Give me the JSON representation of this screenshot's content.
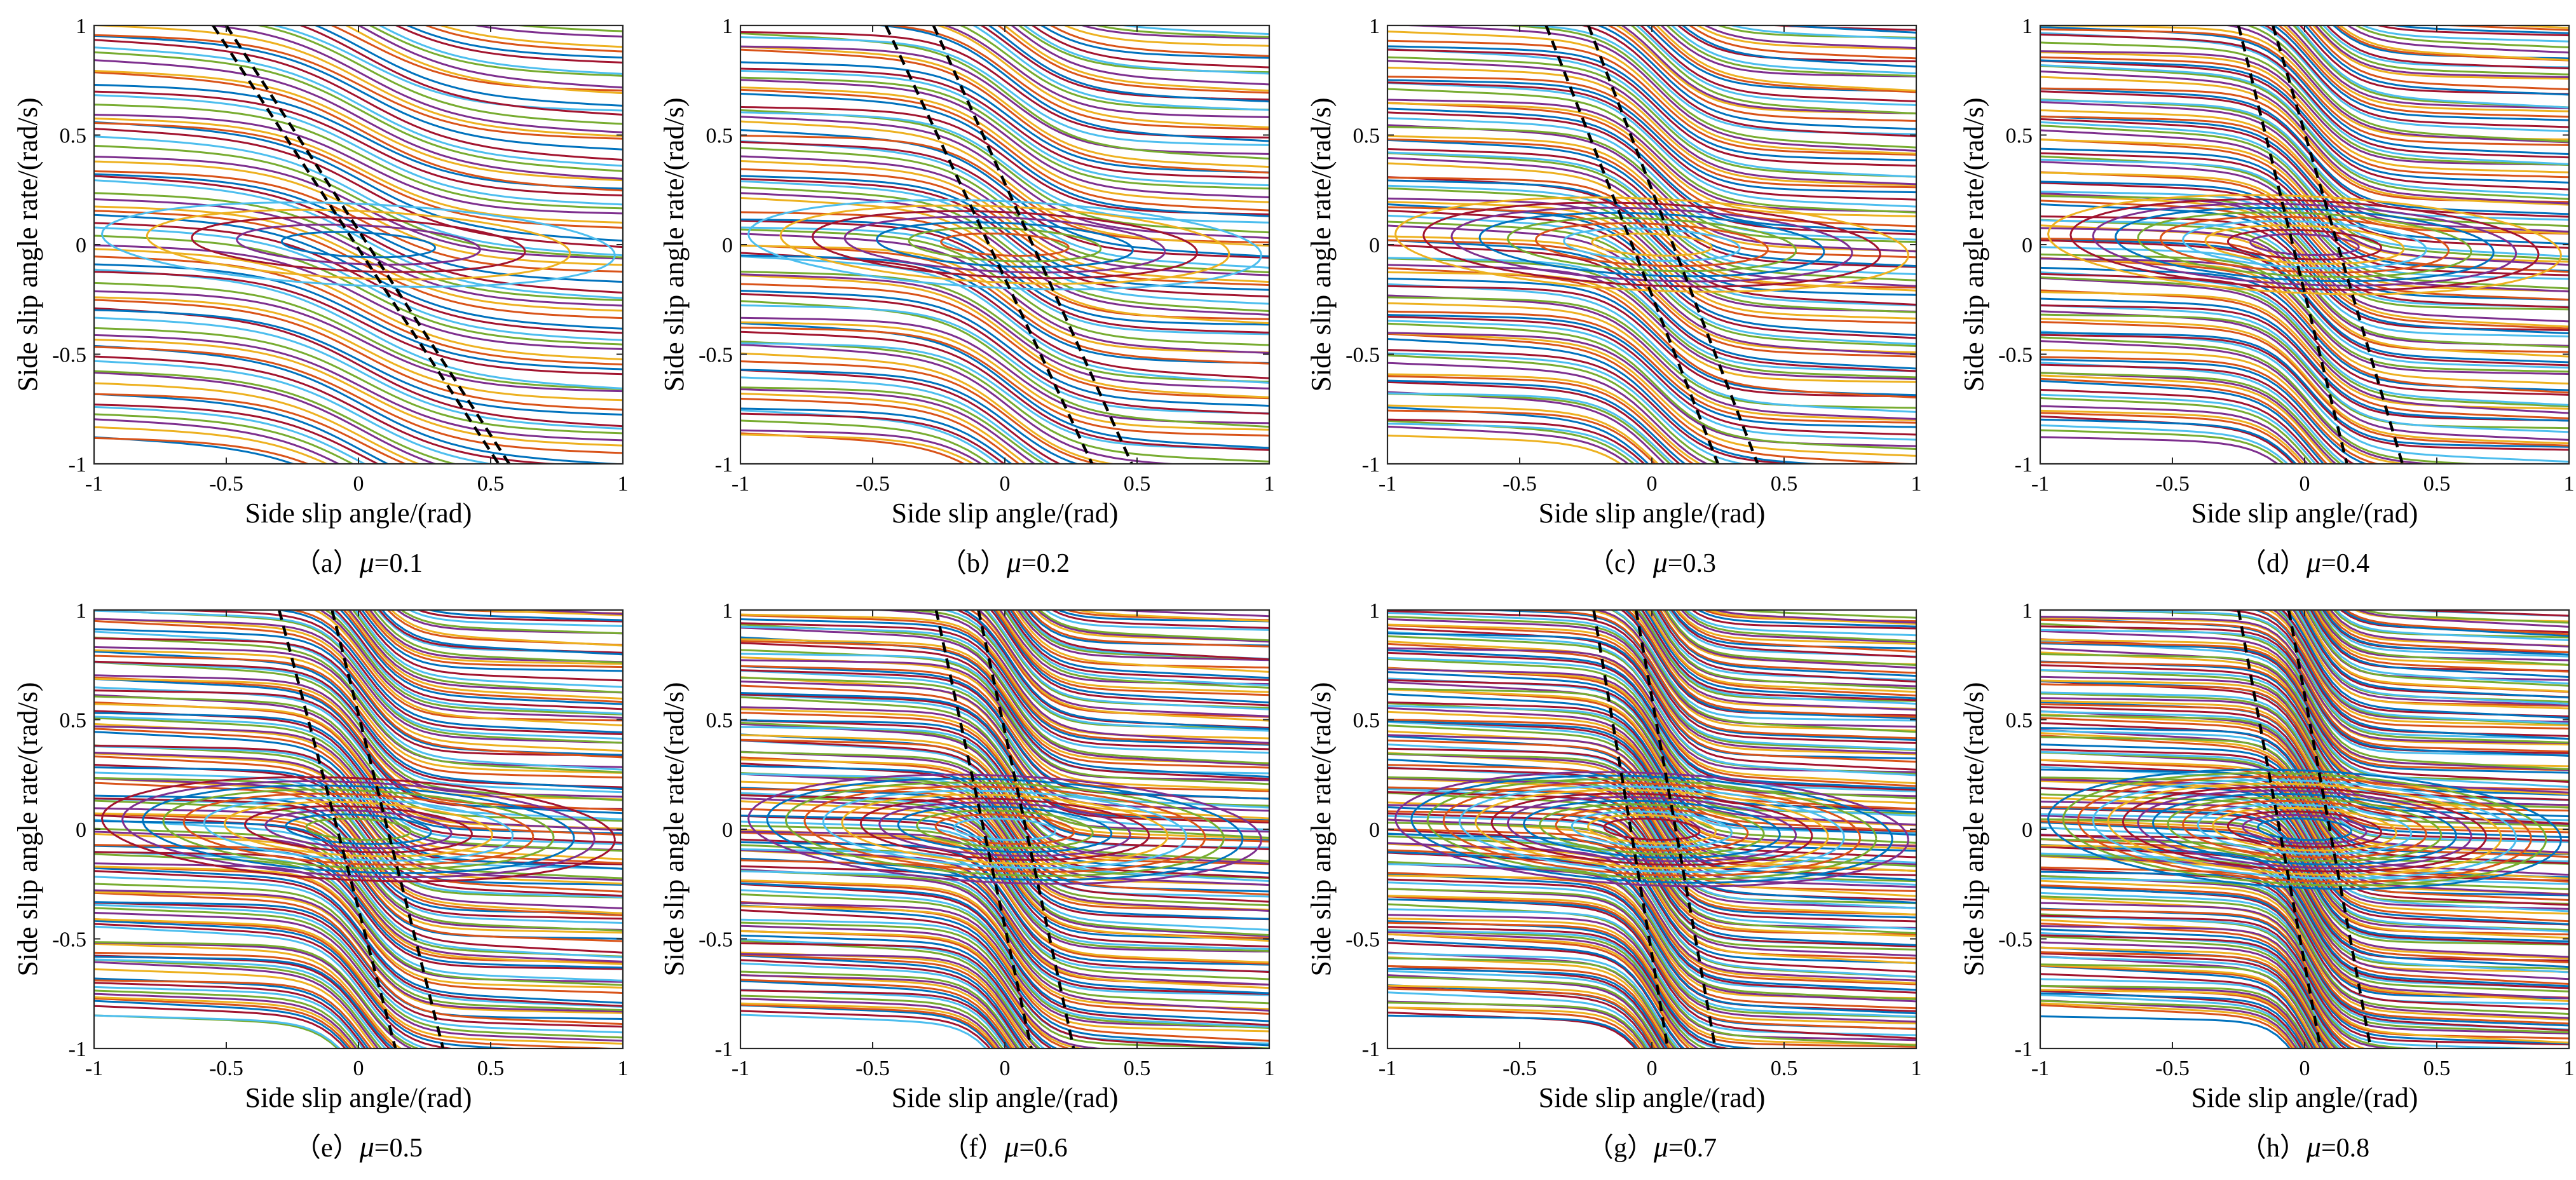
{
  "figure": {
    "panels": [
      {
        "caption_prefix": "（a）",
        "caption_symbol": "μ",
        "caption_value": "=0.1",
        "mu": 0.1
      },
      {
        "caption_prefix": "（b）",
        "caption_symbol": "μ",
        "caption_value": "=0.2",
        "mu": 0.2
      },
      {
        "caption_prefix": "（c）",
        "caption_symbol": "μ",
        "caption_value": "=0.3",
        "mu": 0.3
      },
      {
        "caption_prefix": "（d）",
        "caption_symbol": "μ",
        "caption_value": "=0.4",
        "mu": 0.4
      },
      {
        "caption_prefix": "（e）",
        "caption_symbol": "μ",
        "caption_value": "=0.5",
        "mu": 0.5
      },
      {
        "caption_prefix": "（f）",
        "caption_symbol": "μ",
        "caption_value": "=0.6",
        "mu": 0.6
      },
      {
        "caption_prefix": "（g）",
        "caption_symbol": "μ",
        "caption_value": "=0.7",
        "mu": 0.7
      },
      {
        "caption_prefix": "（h）",
        "caption_symbol": "μ",
        "caption_value": "=0.8",
        "mu": 0.8
      }
    ]
  },
  "chart_data": {
    "type": "line",
    "subtype": "phase-plane trajectories with dashed stability boundaries",
    "xlabel": "Side slip angle/(rad)",
    "ylabel": "Side slip angle rate/(rad/s)",
    "xlim": [
      -1,
      1
    ],
    "ylim": [
      -1,
      1
    ],
    "xticks": [
      "-1",
      "-0.5",
      "0",
      "0.5",
      "1"
    ],
    "yticks": [
      "-1",
      "-0.5",
      "0",
      "0.5",
      "1"
    ],
    "grid": false,
    "legend": "none",
    "trajectory_palette": [
      "#0072BD",
      "#D95319",
      "#EDB120",
      "#7E2F8E",
      "#77AC30",
      "#4DBEEE",
      "#A2142F"
    ],
    "boundary_style": {
      "color": "#000000",
      "dash": "dashed"
    },
    "equilibrium": {
      "x": 0,
      "y": 0
    },
    "series": [
      {
        "mu": 0.1,
        "boundary_lines": [
          {
            "x_at_y1": -0.55,
            "x_at_ym1": 0.53
          },
          {
            "x_at_y1": -0.5,
            "x_at_ym1": 0.57
          }
        ]
      },
      {
        "mu": 0.2,
        "boundary_lines": [
          {
            "x_at_y1": -0.45,
            "x_at_ym1": 0.33
          },
          {
            "x_at_y1": -0.27,
            "x_at_ym1": 0.48
          }
        ]
      },
      {
        "mu": 0.3,
        "boundary_lines": [
          {
            "x_at_y1": -0.4,
            "x_at_ym1": 0.25
          },
          {
            "x_at_y1": -0.24,
            "x_at_ym1": 0.4
          }
        ]
      },
      {
        "mu": 0.4,
        "boundary_lines": [
          {
            "x_at_y1": -0.25,
            "x_at_ym1": 0.16
          },
          {
            "x_at_y1": -0.12,
            "x_at_ym1": 0.37
          }
        ]
      },
      {
        "mu": 0.5,
        "boundary_lines": [
          {
            "x_at_y1": -0.3,
            "x_at_ym1": 0.14
          },
          {
            "x_at_y1": -0.1,
            "x_at_ym1": 0.32
          }
        ]
      },
      {
        "mu": 0.6,
        "boundary_lines": [
          {
            "x_at_y1": -0.26,
            "x_at_ym1": 0.1
          },
          {
            "x_at_y1": -0.1,
            "x_at_ym1": 0.26
          }
        ]
      },
      {
        "mu": 0.7,
        "boundary_lines": [
          {
            "x_at_y1": -0.22,
            "x_at_ym1": 0.06
          },
          {
            "x_at_y1": -0.06,
            "x_at_ym1": 0.24
          }
        ]
      },
      {
        "mu": 0.8,
        "boundary_lines": [
          {
            "x_at_y1": -0.25,
            "x_at_ym1": 0.06
          },
          {
            "x_at_y1": -0.06,
            "x_at_ym1": 0.25
          }
        ]
      }
    ]
  }
}
